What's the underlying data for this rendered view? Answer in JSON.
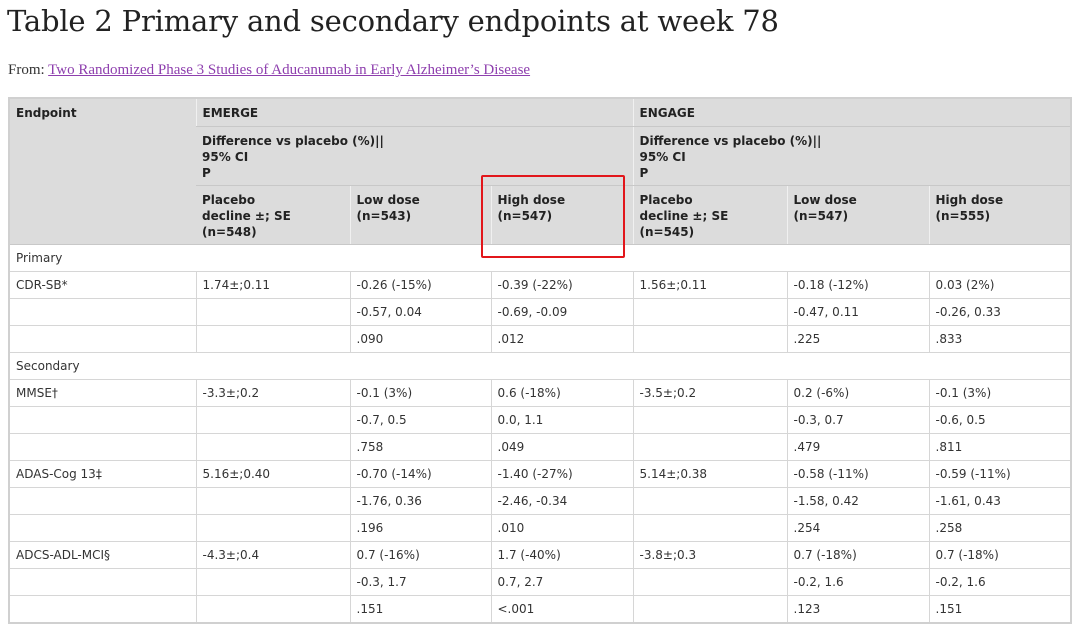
{
  "title": "Table 2 Primary and secondary endpoints at week 78",
  "source": {
    "prefix": "From: ",
    "link_text": "Two Randomized Phase 3 Studies of Aducanumab in Early Alzheimer’s Disease"
  },
  "header": {
    "endpoint": "Endpoint",
    "emerge": "EMERGE",
    "engage": "ENGAGE",
    "diff_line1": "Difference vs placebo (%)||",
    "diff_line2": "95% CI",
    "diff_line3": "P",
    "emerge_cols": [
      {
        "line1": "Placebo",
        "line2": "decline ±; SE",
        "line3": "(n=548)"
      },
      {
        "line1": "Low dose",
        "line2": "(n=543)"
      },
      {
        "line1": "High dose",
        "line2": "(n=547)"
      }
    ],
    "engage_cols": [
      {
        "line1": "Placebo",
        "line2": "decline ±; SE",
        "line3": "(n=545)"
      },
      {
        "line1": "Low dose",
        "line2": "(n=547)"
      },
      {
        "line1": "High dose",
        "line2": "(n=555)"
      }
    ]
  },
  "rows": [
    {
      "section": "Primary"
    },
    {
      "cells": [
        "CDR-SB*",
        "1.74±;0.11",
        "-0.26 (-15%)",
        "-0.39 (-22%)",
        "1.56±;0.11",
        "-0.18 (-12%)",
        "0.03 (2%)"
      ]
    },
    {
      "cells": [
        "",
        "",
        "-0.57, 0.04",
        "-0.69, -0.09",
        "",
        "-0.47, 0.11",
        "-0.26, 0.33"
      ]
    },
    {
      "cells": [
        "",
        "",
        ".090",
        ".012",
        "",
        ".225",
        ".833"
      ]
    },
    {
      "section": "Secondary"
    },
    {
      "cells": [
        "MMSE†",
        "-3.3±;0.2",
        "-0.1 (3%)",
        "0.6 (-18%)",
        "-3.5±;0.2",
        "0.2 (-6%)",
        "-0.1 (3%)"
      ]
    },
    {
      "cells": [
        "",
        "",
        "-0.7, 0.5",
        "0.0, 1.1",
        "",
        "-0.3, 0.7",
        "-0.6, 0.5"
      ]
    },
    {
      "cells": [
        "",
        "",
        ".758",
        ".049",
        "",
        ".479",
        ".811"
      ]
    },
    {
      "cells": [
        "ADAS-Cog 13‡",
        "5.16±;0.40",
        "-0.70 (-14%)",
        "-1.40 (-27%)",
        "5.14±;0.38",
        "-0.58 (-11%)",
        "-0.59 (-11%)"
      ]
    },
    {
      "cells": [
        "",
        "",
        "-1.76, 0.36",
        "-2.46, -0.34",
        "",
        "-1.58, 0.42",
        "-1.61, 0.43"
      ]
    },
    {
      "cells": [
        "",
        "",
        ".196",
        ".010",
        "",
        ".254",
        ".258"
      ]
    },
    {
      "cells": [
        "ADCS-ADL-MCI§",
        "-4.3±;0.4",
        "0.7 (-16%)",
        "1.7 (-40%)",
        "-3.8±;0.3",
        "0.7 (-18%)",
        "0.7 (-18%)"
      ]
    },
    {
      "cells": [
        "",
        "",
        "-0.3, 1.7",
        "0.7, 2.7",
        "",
        "-0.2, 1.6",
        "-0.2, 1.6"
      ]
    },
    {
      "cells": [
        "",
        "",
        ".151",
        "<.001",
        "",
        ".123",
        ".151"
      ]
    }
  ],
  "colors": {
    "link": "#8e3fae",
    "header_bg": "#dcdcdc",
    "highlight": "#e2161b"
  }
}
